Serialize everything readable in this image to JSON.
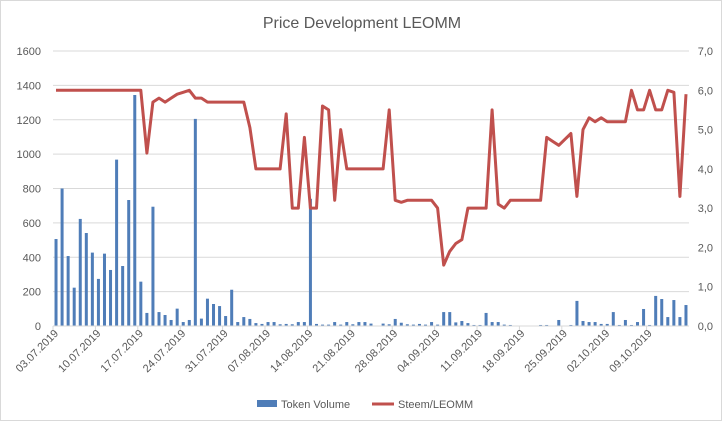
{
  "chart_data": {
    "type": "bar+line",
    "title": "Price Development LEOMM",
    "xlabel": "",
    "ylabel_left": "",
    "ylabel_right": "",
    "x_tick_labels": [
      "03.07.2019",
      "10.07.2019",
      "17.07.2019",
      "24.07.2019",
      "31.07.2019",
      "07.08.2019",
      "14.08.2019",
      "21.08.2019",
      "28.08.2019",
      "04.09.2019",
      "11.09.2019",
      "18.09.2019",
      "25.09.2019",
      "02.10.2019",
      "09.10.2019"
    ],
    "x_tick_every_days": 7,
    "left_axis": {
      "min": 0,
      "max": 1600,
      "step": 200,
      "tick_labels": [
        "0",
        "200",
        "400",
        "600",
        "800",
        "1000",
        "1200",
        "1400",
        "1600"
      ]
    },
    "right_axis": {
      "min": 0,
      "max": 7,
      "step": 1,
      "tick_labels": [
        "0,0",
        "1,0",
        "2,0",
        "3,0",
        "4,0",
        "5,0",
        "6,0",
        "7,0"
      ]
    },
    "grid": true,
    "legend_position": "bottom",
    "series": [
      {
        "name": "Token Volume",
        "type": "bar",
        "axis": "left",
        "color": "#4f7db8",
        "values": [
          506,
          800,
          407,
          223,
          623,
          541,
          427,
          274,
          421,
          326,
          968,
          349,
          733,
          1344,
          258,
          76,
          694,
          81,
          64,
          35,
          101,
          23,
          35,
          1205,
          43,
          159,
          128,
          116,
          58,
          211,
          23,
          52,
          41,
          17,
          12,
          23,
          23,
          10,
          12,
          10,
          23,
          23,
          740,
          12,
          8,
          8,
          23,
          8,
          23,
          10,
          23,
          23,
          14,
          0,
          14,
          10,
          41,
          19,
          10,
          8,
          12,
          8,
          23,
          8,
          81,
          81,
          21,
          29,
          17,
          6,
          6,
          76,
          23,
          23,
          8,
          6,
          0,
          0,
          0,
          0,
          6,
          6,
          0,
          35,
          0,
          6,
          146,
          29,
          23,
          23,
          12,
          12,
          81,
          6,
          35,
          6,
          23,
          99,
          6,
          175,
          157,
          52,
          151,
          52,
          122
        ]
      },
      {
        "name": "Steem/LEOMM",
        "type": "line",
        "axis": "right",
        "color": "#c0504d",
        "values": [
          6.0,
          6.0,
          6.0,
          6.0,
          6.0,
          6.0,
          6.0,
          6.0,
          6.0,
          6.0,
          6.0,
          6.0,
          6.0,
          6.0,
          6.0,
          4.4,
          5.7,
          5.8,
          5.7,
          5.8,
          5.9,
          5.95,
          6.0,
          5.8,
          5.8,
          5.7,
          5.7,
          5.7,
          5.7,
          5.7,
          5.7,
          5.7,
          5.05,
          4.0,
          4.0,
          4.0,
          4.0,
          4.0,
          5.4,
          3.0,
          3.0,
          4.8,
          3.0,
          3.0,
          5.6,
          5.5,
          3.2,
          5.0,
          4.0,
          4.0,
          4.0,
          4.0,
          4.0,
          4.0,
          4.0,
          5.5,
          3.2,
          3.15,
          3.2,
          3.2,
          3.2,
          3.2,
          3.2,
          3.0,
          1.55,
          1.9,
          2.1,
          2.2,
          3.0,
          3.0,
          3.0,
          3.0,
          5.5,
          3.1,
          3.0,
          3.2,
          3.2,
          3.2,
          3.2,
          3.2,
          3.2,
          4.8,
          4.7,
          4.6,
          4.75,
          4.9,
          3.3,
          5.0,
          5.3,
          5.2,
          5.3,
          5.2,
          5.2,
          5.2,
          5.2,
          6.0,
          5.5,
          5.5,
          6.0,
          5.5,
          5.5,
          6.0,
          5.95,
          3.3,
          5.9
        ]
      }
    ]
  }
}
